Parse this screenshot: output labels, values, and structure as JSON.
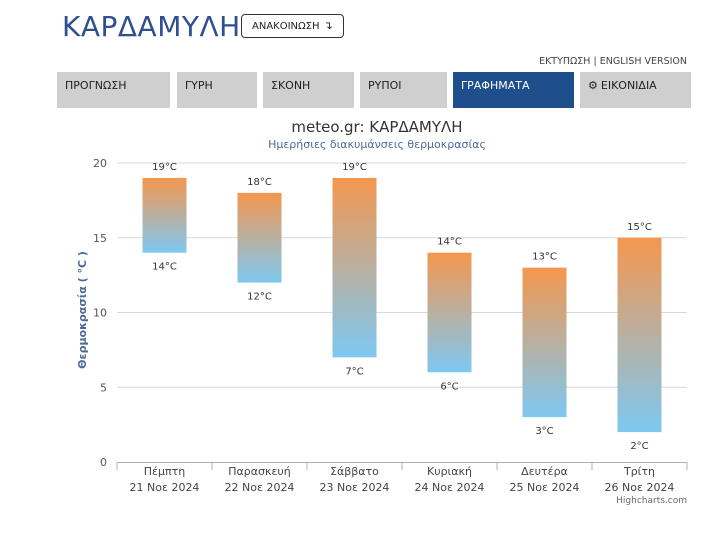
{
  "header": {
    "title": "ΚΑΡΔΑΜΥΛΗ",
    "announcement_label": "ΑΝΑΚΟΙΝΩΣΗ",
    "announcement_icon": "arrow-turn-down-icon",
    "print_link": "ΕΚΤΥΠΩΣΗ",
    "separator": "|",
    "english_link": "ENGLISH VERSION"
  },
  "nav": {
    "tabs": [
      {
        "label": "ΠΡΟΓΝΩΣΗ",
        "active": false
      },
      {
        "label": "ΓΥΡΗ",
        "active": false
      },
      {
        "label": "ΣΚΟΝΗ",
        "active": false
      },
      {
        "label": "ΡΥΠΟΙ",
        "active": false
      },
      {
        "label": "ΓΡΑΦΗΜΑΤΑ",
        "active": true
      },
      {
        "label": "ΕΙΚΟΝΙΔΙΑ",
        "active": false,
        "icon": "gear-icon"
      }
    ],
    "active_color": "#1f4e8c",
    "inactive_color": "#cfcfcf"
  },
  "chart_data": {
    "type": "columnrange",
    "title": "meteo.gr: ΚΑΡΔΑΜΥΛΗ",
    "subtitle": "Ημερήσιες διακυμάνσεις θερμοκρασίας",
    "ylabel": "Θερμοκρασία ( °C )",
    "ylim": [
      0,
      20
    ],
    "yticks": [
      0,
      5,
      10,
      15,
      20
    ],
    "grid": true,
    "categories": [
      [
        "Πέμπτη",
        "21 Νοε 2024"
      ],
      [
        "Παρασκευή",
        "22 Νοε 2024"
      ],
      [
        "Σάββατο",
        "23 Νοε 2024"
      ],
      [
        "Κυριακή",
        "24 Νοε 2024"
      ],
      [
        "Δευτέρα",
        "25 Νοε 2024"
      ],
      [
        "Τρίτη",
        "26 Νοε 2024"
      ]
    ],
    "low": [
      14,
      12,
      7,
      6,
      3,
      2
    ],
    "high": [
      19,
      18,
      19,
      14,
      13,
      15
    ],
    "unit": "°C",
    "gradient_top_color": "#f4974f",
    "gradient_bottom_color": "#7ec8f2",
    "credits": "Highcharts.com"
  }
}
